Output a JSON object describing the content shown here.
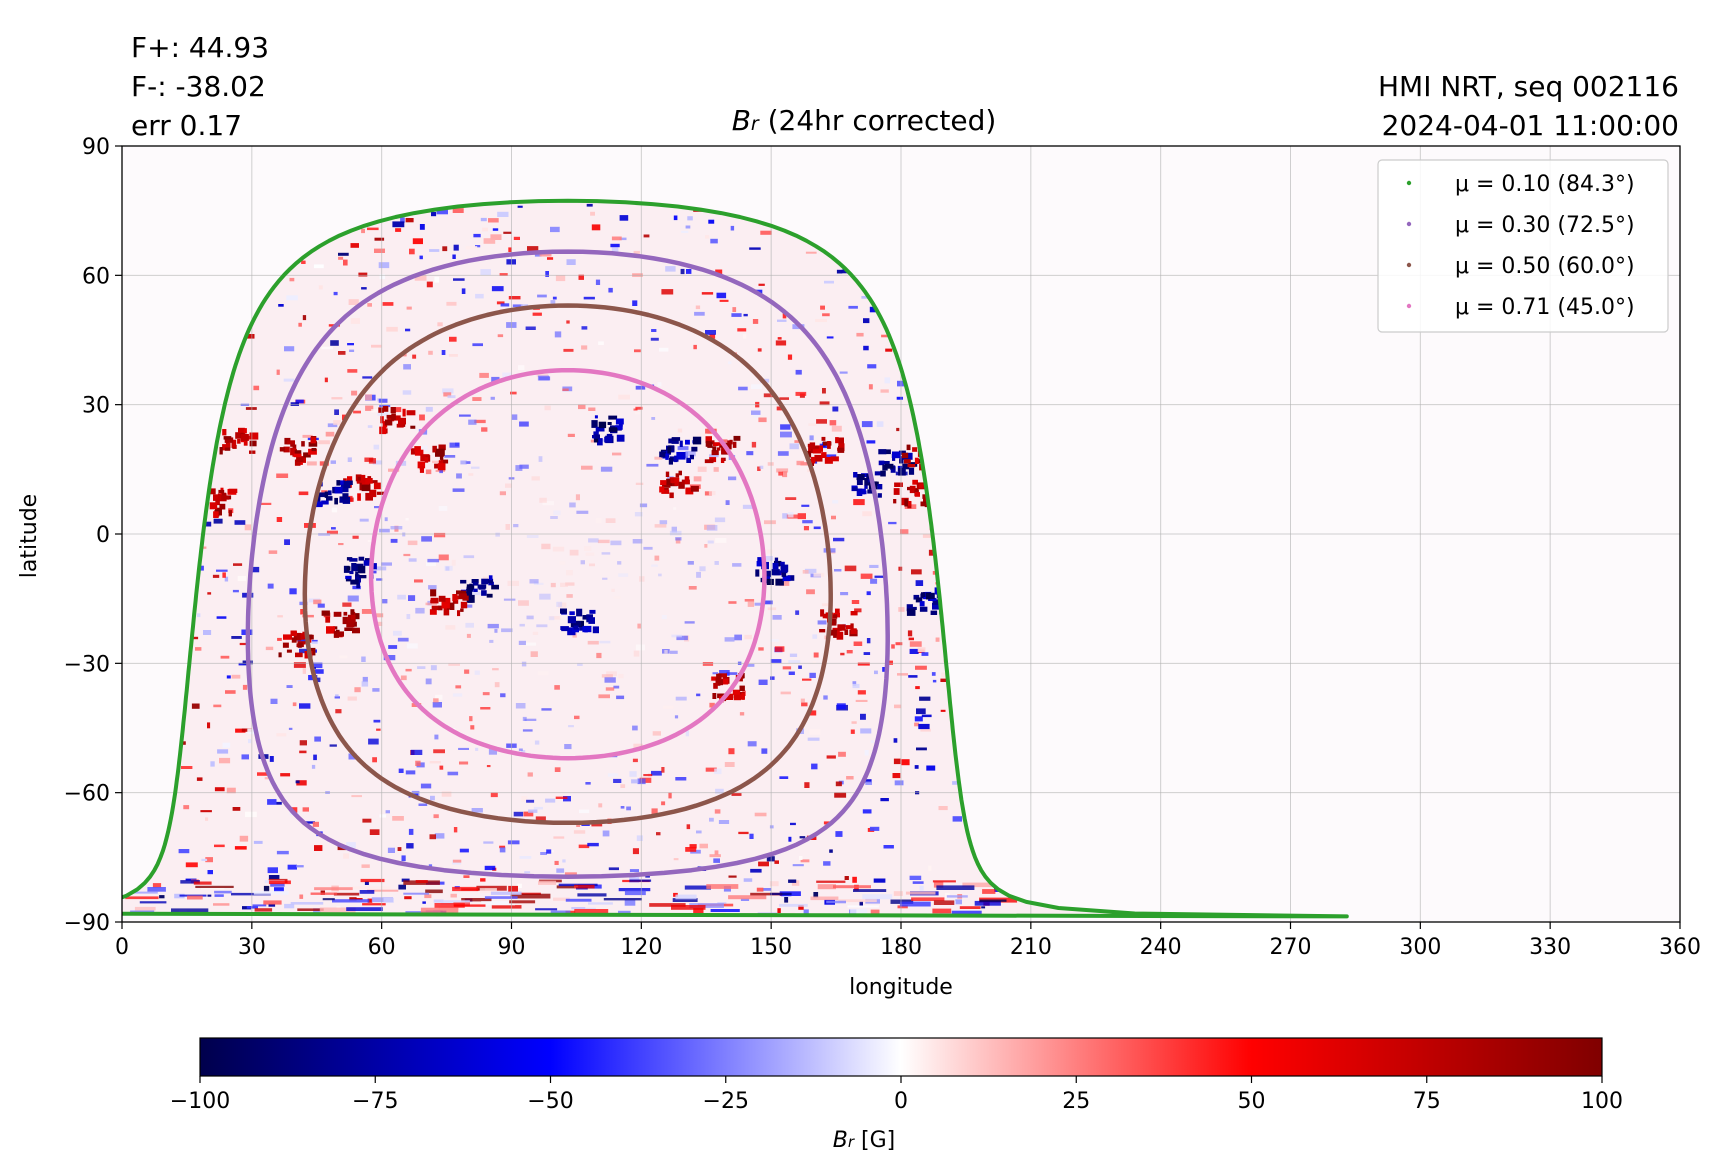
{
  "stats": {
    "f_plus": "F+: 44.93",
    "f_minus": "F-: -38.02",
    "err": "err 0.17"
  },
  "meta": {
    "instrument": "HMI NRT, seq 002116",
    "datetime": "2024-04-01 11:00:00"
  },
  "title": {
    "symbol": "B",
    "subscript": "r",
    "text": " (24hr corrected)"
  },
  "colorbar": {
    "label_symbol": "B",
    "label_subscript": "r",
    "label_unit": " [G]",
    "range": [
      -100,
      100
    ],
    "ticks": [
      -100,
      -75,
      -50,
      -25,
      0,
      25,
      50,
      75,
      100
    ],
    "colors": [
      "#00004c",
      "#0000ff",
      "#ffffff",
      "#ff0000",
      "#800000"
    ]
  },
  "chart_data": {
    "type": "heatmap",
    "title": "B_r (24hr corrected)",
    "xlabel": "longitude",
    "ylabel": "latitude",
    "xlim": [
      0,
      360
    ],
    "ylim": [
      -90,
      90
    ],
    "xticks": [
      0,
      30,
      60,
      90,
      120,
      150,
      180,
      210,
      240,
      270,
      300,
      330,
      360
    ],
    "yticks": [
      -90,
      -60,
      -30,
      0,
      30,
      60,
      90
    ],
    "grid": true,
    "legend_position": "top-right",
    "disk_center": {
      "lon": 103,
      "lat": -7
    },
    "contours": [
      {
        "label": "μ = 0.10 (84.3°)",
        "mu": 0.1,
        "angle_deg": 84.3,
        "color": "#2ca02c"
      },
      {
        "label": "μ = 0.30 (72.5°)",
        "mu": 0.3,
        "angle_deg": 72.5,
        "color": "#9467bd"
      },
      {
        "label": "μ = 0.50 (60.0°)",
        "mu": 0.5,
        "angle_deg": 60.0,
        "color": "#8c564b"
      },
      {
        "label": "μ = 0.71 (45.0°)",
        "mu": 0.71,
        "angle_deg": 45.0,
        "color": "#e377c2"
      }
    ],
    "active_regions": [
      {
        "lon": 40,
        "lat": 20,
        "polarity": "positive"
      },
      {
        "lon": 21,
        "lat": 8,
        "polarity": "positive"
      },
      {
        "lon": 26,
        "lat": 22,
        "polarity": "positive"
      },
      {
        "lon": 55,
        "lat": 12,
        "polarity": "positive"
      },
      {
        "lon": 48,
        "lat": 10,
        "polarity": "negative"
      },
      {
        "lon": 63,
        "lat": 27,
        "polarity": "positive"
      },
      {
        "lon": 70,
        "lat": 18,
        "polarity": "positive"
      },
      {
        "lon": 82,
        "lat": -12,
        "polarity": "negative"
      },
      {
        "lon": 75,
        "lat": -15,
        "polarity": "positive"
      },
      {
        "lon": 105,
        "lat": -20,
        "polarity": "negative"
      },
      {
        "lon": 112,
        "lat": 25,
        "polarity": "negative"
      },
      {
        "lon": 128,
        "lat": 20,
        "polarity": "negative"
      },
      {
        "lon": 138,
        "lat": 20,
        "polarity": "positive"
      },
      {
        "lon": 128,
        "lat": 12,
        "polarity": "positive"
      },
      {
        "lon": 150,
        "lat": -8,
        "polarity": "negative"
      },
      {
        "lon": 140,
        "lat": -35,
        "polarity": "positive"
      },
      {
        "lon": 162,
        "lat": 20,
        "polarity": "positive"
      },
      {
        "lon": 172,
        "lat": 12,
        "polarity": "negative"
      },
      {
        "lon": 178,
        "lat": 18,
        "polarity": "negative"
      },
      {
        "lon": 184,
        "lat": 18,
        "polarity": "positive"
      },
      {
        "lon": 182,
        "lat": 10,
        "polarity": "positive"
      },
      {
        "lon": 185,
        "lat": -15,
        "polarity": "negative"
      },
      {
        "lon": 50,
        "lat": -20,
        "polarity": "positive"
      },
      {
        "lon": 40,
        "lat": -25,
        "polarity": "positive"
      },
      {
        "lon": 55,
        "lat": -8,
        "polarity": "negative"
      },
      {
        "lon": 165,
        "lat": -20,
        "polarity": "positive"
      }
    ]
  }
}
